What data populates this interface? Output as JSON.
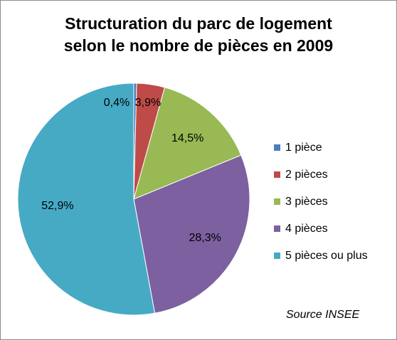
{
  "chart_data": {
    "type": "pie",
    "title": "Structuration du parc de logement selon le nombre de pièces en 2009",
    "title_lines": [
      "Structuration du parc de logement",
      "selon le nombre de pièces en 2009"
    ],
    "categories": [
      "1 pièce",
      "2 pièces",
      "3 pièces",
      "4 pièces",
      "5 pièces ou plus"
    ],
    "values": [
      0.4,
      3.9,
      14.5,
      28.3,
      52.9
    ],
    "labels": [
      "0,4%",
      "3,9%",
      "14,5%",
      "28,3%",
      "52,9%"
    ],
    "colors": [
      "#4a7ebb",
      "#be4b48",
      "#98b954",
      "#7d60a0",
      "#46aac5"
    ],
    "legend_position": "right",
    "source": "Source INSEE"
  }
}
